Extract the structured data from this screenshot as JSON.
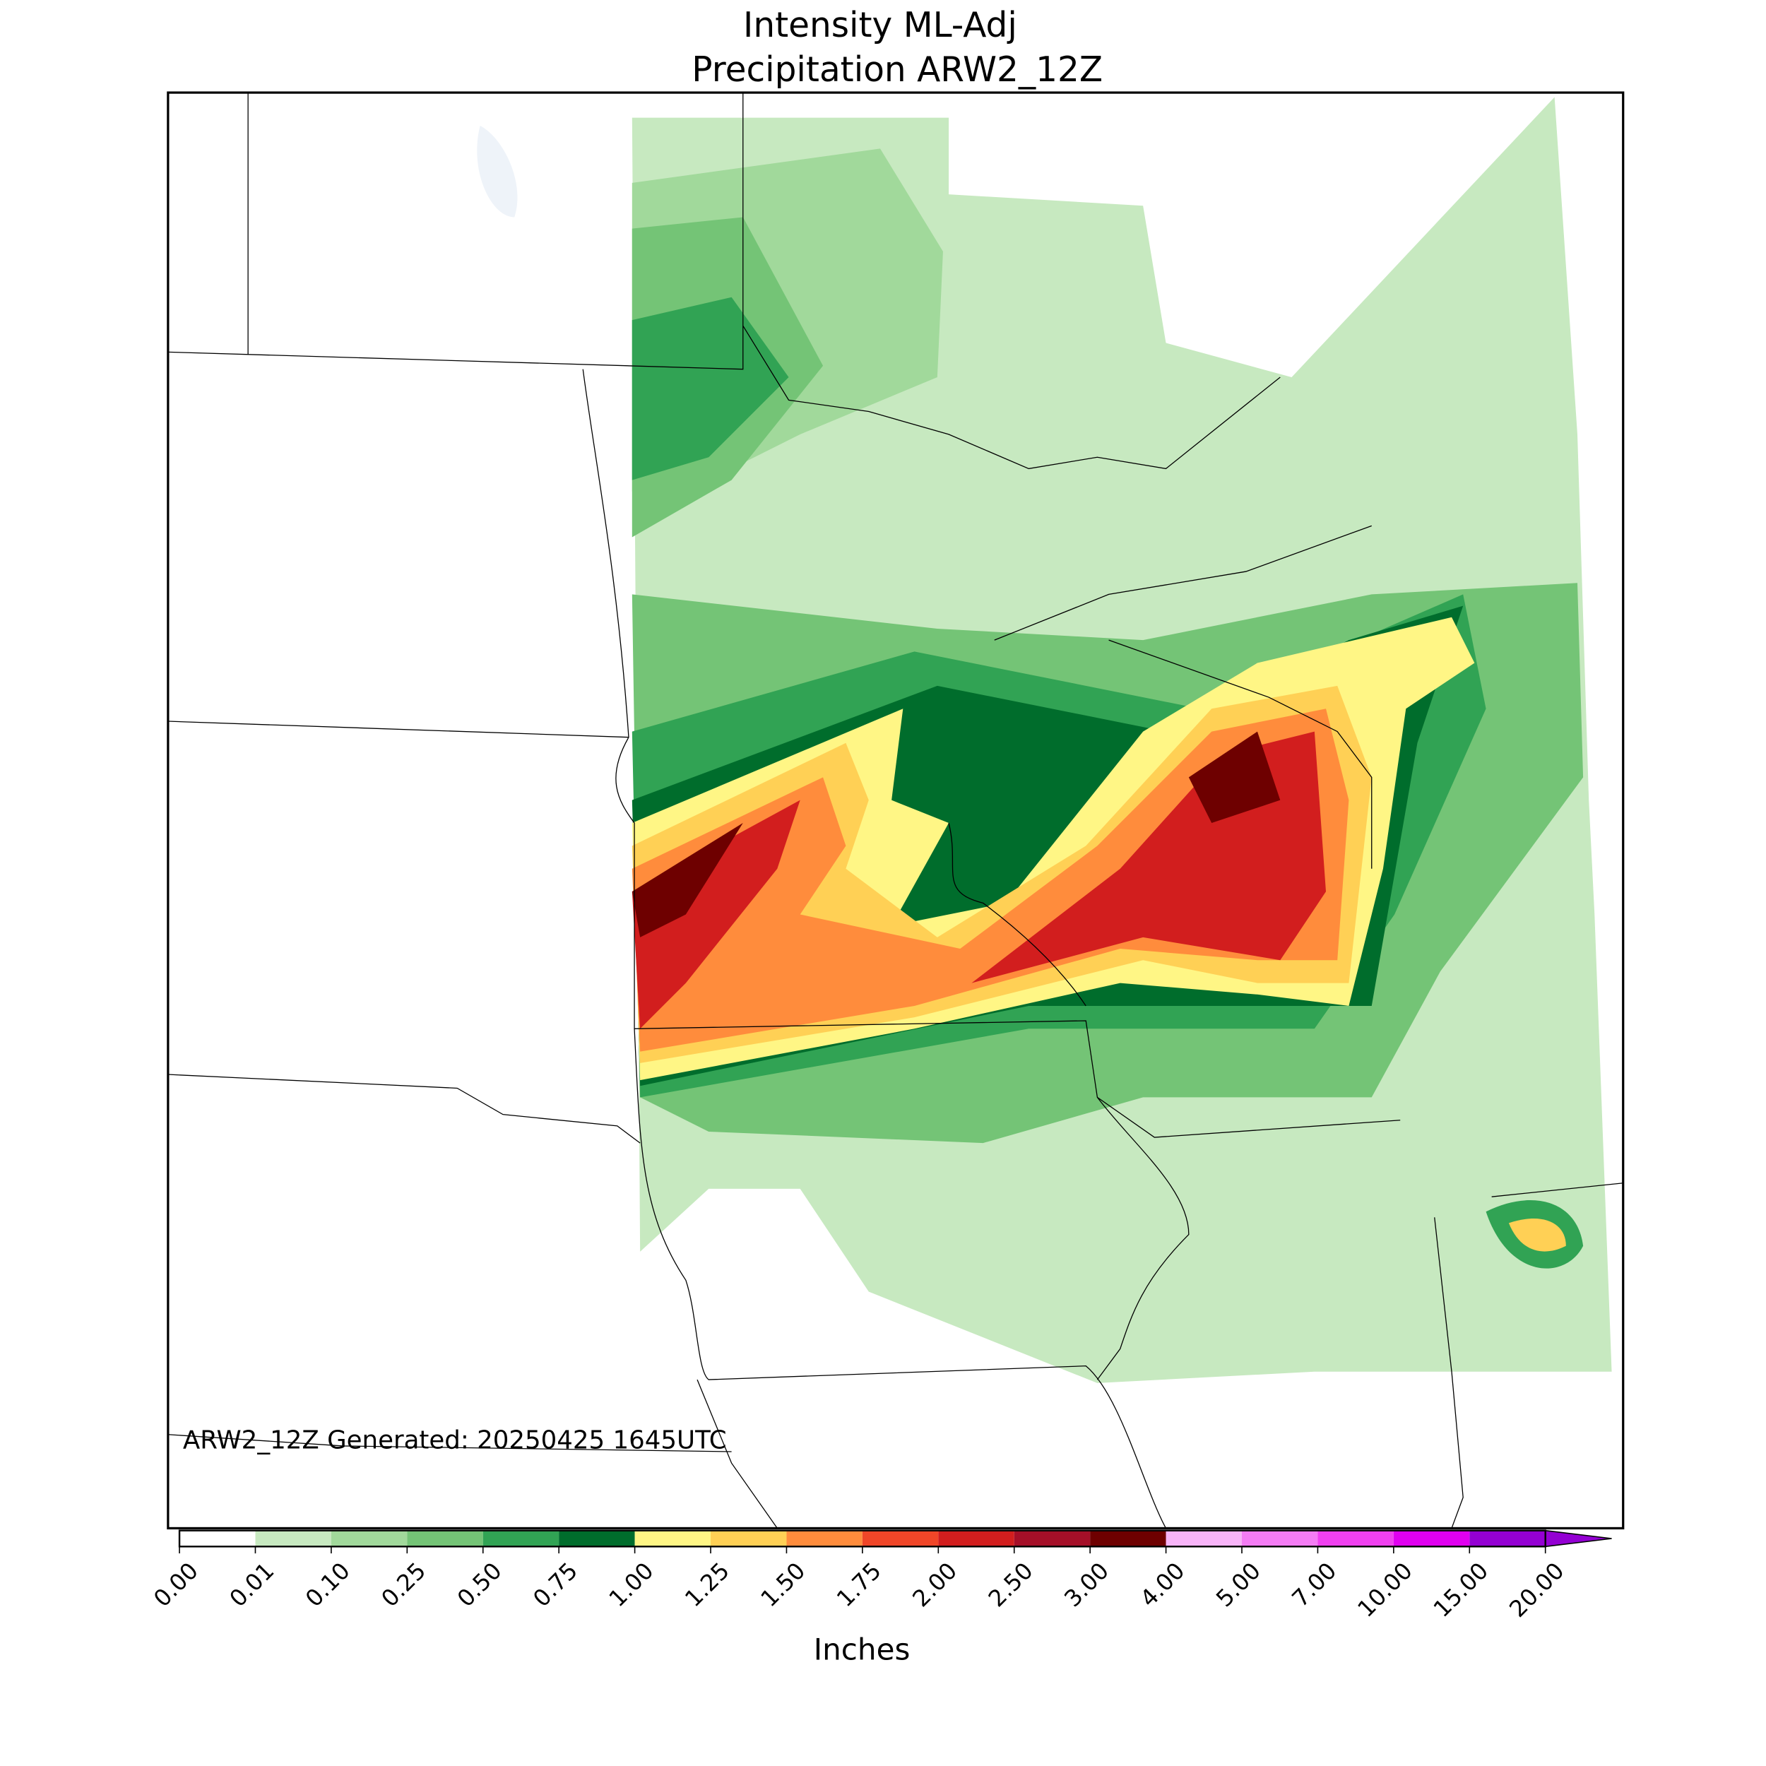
{
  "chart_data": {
    "type": "colorbar",
    "title": [
      "Intensity ML-Adj",
      "Precipitation ARW2_12Z"
    ],
    "annotation": "ARW2_12Z Generated: 20250425 1645UTC",
    "xlabel": "Inches",
    "xticks": [
      {
        "value": 0,
        "label": "0.00"
      },
      {
        "value": 0.01,
        "label": "0.01"
      },
      {
        "value": 0.1,
        "label": "0.10"
      },
      {
        "value": 0.25,
        "label": "0.25"
      },
      {
        "value": 0.5,
        "label": "0.50"
      },
      {
        "value": 0.75,
        "label": "0.75"
      },
      {
        "value": 1,
        "label": "1.00"
      },
      {
        "value": 1.25,
        "label": "1.25"
      },
      {
        "value": 1.5,
        "label": "1.50"
      },
      {
        "value": 1.75,
        "label": "1.75"
      },
      {
        "value": 2,
        "label": "2.00"
      },
      {
        "value": 2.5,
        "label": "2.50"
      },
      {
        "value": 3,
        "label": "3.00"
      },
      {
        "value": 4,
        "label": "4.00"
      },
      {
        "value": 5,
        "label": "5.00"
      },
      {
        "value": 7,
        "label": "7.00"
      },
      {
        "value": 10,
        "label": "10.00"
      },
      {
        "value": 15,
        "label": "15.00"
      },
      {
        "value": 20,
        "label": "20.00"
      }
    ],
    "colors": [
      "#ffffff",
      "#c7e9c0",
      "#a1d99b",
      "#74c476",
      "#31a354",
      "#006d2c",
      "#fff685",
      "#ffd055",
      "#ff8c3c",
      "#f04628",
      "#d21e1e",
      "#a50f28",
      "#6e0000",
      "#f8b4f8",
      "#f47cf4",
      "#f040f0",
      "#e000f0",
      "#9400d3"
    ],
    "extend": "max"
  }
}
